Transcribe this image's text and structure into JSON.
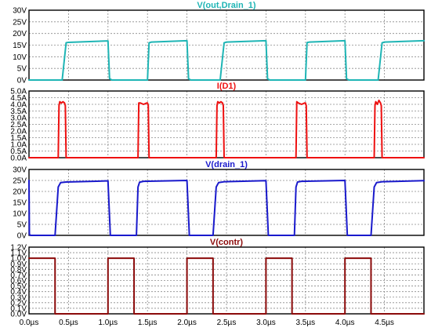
{
  "chart_data": [
    {
      "type": "line",
      "title": "V(out,Drain_1)",
      "color": "#1fb5b5",
      "ylim": [
        0,
        30
      ],
      "yticks": [
        0,
        5,
        10,
        15,
        20,
        25,
        30
      ],
      "ytick_labels": [
        "0V",
        "5V",
        "10V",
        "15V",
        "20V",
        "25V",
        "30V"
      ],
      "grid": true,
      "series": [
        {
          "x": [
            0.0,
            0.42,
            0.47,
            0.5,
            1.0,
            1.02,
            1.05,
            1.5,
            1.52,
            1.55,
            2.0,
            2.02,
            2.05,
            2.42,
            2.47,
            2.5,
            3.0,
            3.02,
            3.05,
            3.5,
            3.52,
            3.55,
            4.0,
            4.02,
            4.05,
            4.42,
            4.47,
            4.5,
            5.0
          ],
          "y": [
            0.0,
            0.0,
            16.0,
            16.2,
            16.8,
            0.6,
            0.0,
            0.0,
            16.0,
            16.3,
            16.9,
            0.5,
            0.0,
            0.0,
            16.0,
            16.3,
            16.9,
            0.5,
            0.0,
            0.0,
            16.1,
            16.3,
            16.9,
            0.5,
            0.0,
            0.0,
            16.0,
            16.3,
            16.9
          ]
        }
      ]
    },
    {
      "type": "line",
      "title": "I(D1)",
      "color": "#ee1111",
      "ylim": [
        0,
        5
      ],
      "yticks": [
        0,
        0.5,
        1,
        1.5,
        2,
        2.5,
        3,
        3.5,
        4,
        4.5,
        5
      ],
      "ytick_labels": [
        "0.0A",
        "0.5A",
        "1.0A",
        "1.5A",
        "2.0A",
        "2.5A",
        "3.0A",
        "3.5A",
        "4.0A",
        "4.5A",
        "5.0A"
      ],
      "grid": true,
      "series": [
        {
          "x": [
            0.0,
            0.37,
            0.38,
            0.39,
            0.41,
            0.43,
            0.45,
            0.46,
            0.47,
            1.0,
            1.38,
            1.39,
            1.41,
            1.45,
            1.49,
            1.5,
            1.51,
            1.52,
            2.0,
            2.37,
            2.38,
            2.39,
            2.41,
            2.43,
            2.45,
            2.46,
            2.47,
            3.0,
            3.38,
            3.39,
            3.41,
            3.45,
            3.49,
            3.5,
            3.51,
            3.52,
            4.0,
            4.37,
            4.38,
            4.39,
            4.41,
            4.43,
            4.45,
            4.46,
            4.47,
            5.0
          ],
          "y": [
            0.0,
            0.0,
            3.9,
            4.2,
            4.1,
            4.2,
            4.1,
            3.9,
            0.0,
            0.0,
            0.0,
            4.1,
            4.1,
            4.0,
            4.1,
            4.1,
            3.9,
            0.0,
            0.0,
            0.0,
            3.9,
            4.2,
            4.1,
            4.2,
            4.1,
            3.9,
            0.0,
            0.0,
            0.0,
            4.2,
            4.1,
            4.0,
            4.1,
            4.1,
            3.9,
            0.0,
            0.0,
            0.0,
            3.9,
            4.2,
            4.0,
            4.3,
            4.1,
            3.9,
            0.0,
            0.0
          ]
        }
      ]
    },
    {
      "type": "line",
      "title": "V(drain_1)",
      "color": "#1a1acc",
      "ylim": [
        0,
        30
      ],
      "yticks": [
        0,
        5,
        10,
        15,
        20,
        25,
        30
      ],
      "ytick_labels": [
        "0V",
        "5V",
        "10V",
        "15V",
        "20V",
        "25V",
        "30V"
      ],
      "grid": true,
      "series": [
        {
          "x": [
            0.0,
            0.005,
            0.02,
            0.33,
            0.37,
            0.4,
            0.47,
            1.0,
            1.03,
            1.36,
            1.38,
            1.4,
            1.45,
            2.0,
            2.03,
            2.33,
            2.37,
            2.4,
            2.47,
            3.0,
            3.03,
            3.36,
            3.38,
            3.4,
            3.45,
            4.0,
            4.03,
            4.33,
            4.37,
            4.4,
            4.47,
            5.0
          ],
          "y": [
            25.0,
            0.5,
            0.0,
            0.0,
            22.0,
            24.0,
            24.3,
            24.8,
            0.0,
            0.0,
            22.0,
            24.2,
            24.6,
            25.0,
            0.0,
            0.0,
            22.0,
            24.0,
            24.4,
            24.9,
            0.0,
            0.0,
            22.0,
            24.3,
            24.6,
            25.0,
            0.0,
            0.0,
            22.0,
            24.0,
            24.4,
            24.9
          ]
        }
      ]
    },
    {
      "type": "line",
      "title": "V(contr)",
      "color": "#8b0a0a",
      "ylim": [
        0,
        1.2
      ],
      "yticks": [
        0,
        0.1,
        0.2,
        0.3,
        0.4,
        0.5,
        0.6,
        0.7,
        0.8,
        0.9,
        1.0,
        1.1,
        1.2
      ],
      "ytick_labels": [
        "0.0V",
        "0.1V",
        "0.2V",
        "0.3V",
        "0.4V",
        "0.5V",
        "0.6V",
        "0.7V",
        "0.8V",
        "0.9V",
        "1.0V",
        "1.1V",
        "1.2V"
      ],
      "grid": true,
      "series": [
        {
          "x": [
            0.0,
            0.33,
            0.33,
            1.0,
            1.0,
            1.33,
            1.33,
            2.0,
            2.0,
            2.33,
            2.33,
            3.0,
            3.0,
            3.33,
            3.33,
            4.0,
            4.0,
            4.33,
            4.33,
            5.0
          ],
          "y": [
            1.0,
            1.0,
            0.0,
            0.0,
            1.0,
            1.0,
            0.0,
            0.0,
            1.0,
            1.0,
            0.0,
            0.0,
            1.0,
            1.0,
            0.0,
            0.0,
            1.0,
            1.0,
            0.0,
            0.0
          ]
        }
      ]
    }
  ],
  "x_axis": {
    "xlim": [
      0,
      5.0
    ],
    "ticks": [
      0,
      0.5,
      1.0,
      1.5,
      2.0,
      2.5,
      3.0,
      3.5,
      4.0,
      4.5
    ],
    "tick_labels": [
      "0.0µs",
      "0.5µs",
      "1.0µs",
      "1.5µs",
      "2.0µs",
      "2.5µs",
      "3.0µs",
      "3.5µs",
      "4.0µs",
      "4.5µs"
    ]
  }
}
